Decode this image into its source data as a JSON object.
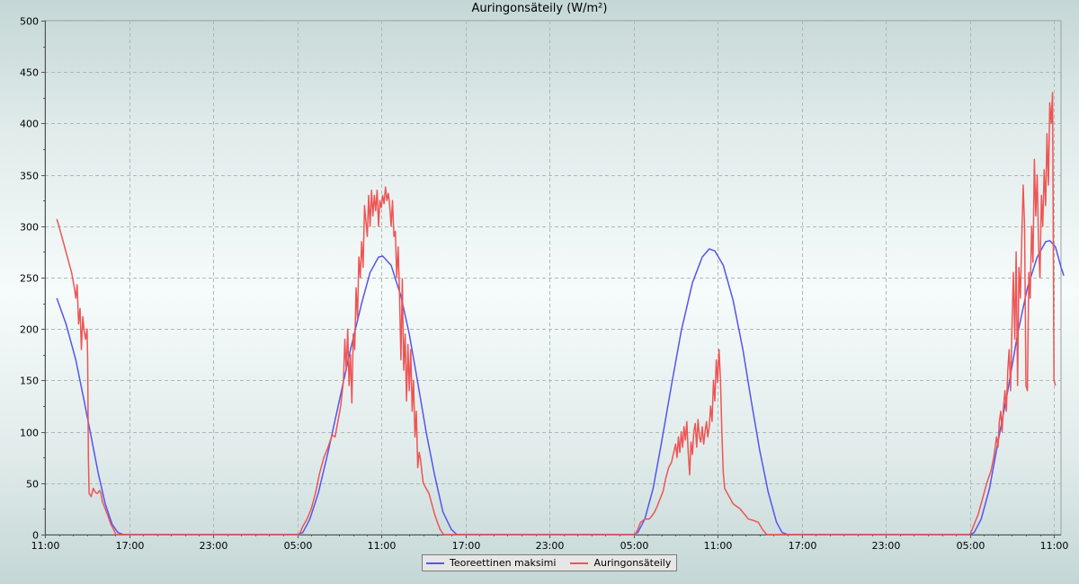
{
  "chart_data": {
    "type": "line",
    "title": "Auringonsäteily (W/m²)",
    "xlabel": "",
    "ylabel": "",
    "ylim": [
      0,
      500
    ],
    "yticks": [
      0,
      50,
      100,
      150,
      200,
      250,
      300,
      350,
      400,
      450,
      500
    ],
    "x_unit": "hours from the 11:00 tick at left edge",
    "xlim": [
      0,
      72.5
    ],
    "xticks": [
      {
        "x": 0,
        "label": "11:00"
      },
      {
        "x": 6,
        "label": "17:00"
      },
      {
        "x": 12,
        "label": "23:00"
      },
      {
        "x": 18,
        "label": "05:00"
      },
      {
        "x": 24,
        "label": "11:00"
      },
      {
        "x": 30,
        "label": "17:00"
      },
      {
        "x": 36,
        "label": "23:00"
      },
      {
        "x": 42,
        "label": "05:00"
      },
      {
        "x": 48,
        "label": "11:00"
      },
      {
        "x": 54,
        "label": "17:00"
      },
      {
        "x": 60,
        "label": "23:00"
      },
      {
        "x": 66,
        "label": "05:00"
      },
      {
        "x": 72,
        "label": "11:00"
      }
    ],
    "grid": true,
    "legend_position": "bottom-center",
    "series": [
      {
        "name": "Teoreettinen maksimi",
        "color": "#5555ee",
        "points": [
          [
            0.85,
            230
          ],
          [
            1.5,
            205
          ],
          [
            2.2,
            170
          ],
          [
            2.8,
            130
          ],
          [
            3.3,
            95
          ],
          [
            3.8,
            60
          ],
          [
            4.3,
            30
          ],
          [
            4.8,
            10
          ],
          [
            5.2,
            2
          ],
          [
            5.6,
            0
          ],
          [
            18.0,
            0
          ],
          [
            18.4,
            2
          ],
          [
            18.9,
            15
          ],
          [
            19.5,
            40
          ],
          [
            20.2,
            80
          ],
          [
            21.0,
            130
          ],
          [
            21.8,
            180
          ],
          [
            22.6,
            225
          ],
          [
            23.2,
            255
          ],
          [
            23.8,
            270
          ],
          [
            24.1,
            271
          ],
          [
            24.7,
            262
          ],
          [
            25.4,
            232
          ],
          [
            26.0,
            195
          ],
          [
            26.6,
            148
          ],
          [
            27.2,
            100
          ],
          [
            27.8,
            58
          ],
          [
            28.4,
            22
          ],
          [
            29.0,
            5
          ],
          [
            29.4,
            0
          ],
          [
            42.0,
            0
          ],
          [
            42.3,
            2
          ],
          [
            42.8,
            15
          ],
          [
            43.4,
            45
          ],
          [
            44.0,
            90
          ],
          [
            44.7,
            145
          ],
          [
            45.4,
            198
          ],
          [
            46.2,
            245
          ],
          [
            46.9,
            270
          ],
          [
            47.4,
            278
          ],
          [
            47.8,
            276
          ],
          [
            48.4,
            262
          ],
          [
            49.1,
            228
          ],
          [
            49.8,
            180
          ],
          [
            50.4,
            130
          ],
          [
            51.0,
            82
          ],
          [
            51.6,
            42
          ],
          [
            52.2,
            12
          ],
          [
            52.6,
            2
          ],
          [
            53.0,
            0
          ],
          [
            66.0,
            0
          ],
          [
            66.3,
            2
          ],
          [
            66.8,
            15
          ],
          [
            67.4,
            45
          ],
          [
            68.0,
            90
          ],
          [
            68.7,
            140
          ],
          [
            69.4,
            195
          ],
          [
            70.1,
            240
          ],
          [
            70.8,
            270
          ],
          [
            71.4,
            285
          ],
          [
            71.7,
            286
          ],
          [
            72.1,
            280
          ],
          [
            72.5,
            260
          ],
          [
            72.7,
            252
          ]
        ]
      },
      {
        "name": "Auringonsäteily",
        "color": "#ee5555",
        "points": [
          [
            0.85,
            307
          ],
          [
            1.0,
            300
          ],
          [
            1.3,
            285
          ],
          [
            1.6,
            270
          ],
          [
            1.9,
            255
          ],
          [
            2.1,
            240
          ],
          [
            2.2,
            230
          ],
          [
            2.3,
            243
          ],
          [
            2.4,
            205
          ],
          [
            2.5,
            220
          ],
          [
            2.6,
            180
          ],
          [
            2.7,
            212
          ],
          [
            2.8,
            198
          ],
          [
            2.9,
            190
          ],
          [
            3.0,
            200
          ],
          [
            3.05,
            170
          ],
          [
            3.1,
            75
          ],
          [
            3.15,
            40
          ],
          [
            3.3,
            37
          ],
          [
            3.45,
            45
          ],
          [
            3.6,
            41
          ],
          [
            3.75,
            40
          ],
          [
            3.9,
            43
          ],
          [
            4.0,
            40
          ],
          [
            4.1,
            32
          ],
          [
            4.3,
            25
          ],
          [
            4.5,
            18
          ],
          [
            4.7,
            10
          ],
          [
            4.9,
            5
          ],
          [
            5.05,
            0
          ],
          [
            18.15,
            0
          ],
          [
            18.4,
            8
          ],
          [
            18.7,
            15
          ],
          [
            19.0,
            25
          ],
          [
            19.3,
            40
          ],
          [
            19.6,
            60
          ],
          [
            19.9,
            75
          ],
          [
            20.2,
            85
          ],
          [
            20.5,
            97
          ],
          [
            20.7,
            95
          ],
          [
            20.9,
            110
          ],
          [
            21.1,
            125
          ],
          [
            21.3,
            150
          ],
          [
            21.4,
            190
          ],
          [
            21.5,
            160
          ],
          [
            21.6,
            200
          ],
          [
            21.7,
            145
          ],
          [
            21.8,
            175
          ],
          [
            21.9,
            128
          ],
          [
            22.0,
            195
          ],
          [
            22.1,
            180
          ],
          [
            22.2,
            240
          ],
          [
            22.3,
            210
          ],
          [
            22.4,
            270
          ],
          [
            22.5,
            250
          ],
          [
            22.6,
            285
          ],
          [
            22.7,
            260
          ],
          [
            22.8,
            320
          ],
          [
            22.9,
            305
          ],
          [
            23.0,
            290
          ],
          [
            23.1,
            330
          ],
          [
            23.2,
            300
          ],
          [
            23.3,
            335
          ],
          [
            23.4,
            310
          ],
          [
            23.5,
            330
          ],
          [
            23.6,
            315
          ],
          [
            23.7,
            335
          ],
          [
            23.8,
            300
          ],
          [
            23.9,
            325
          ],
          [
            24.0,
            318
          ],
          [
            24.1,
            330
          ],
          [
            24.2,
            322
          ],
          [
            24.3,
            338
          ],
          [
            24.4,
            325
          ],
          [
            24.5,
            332
          ],
          [
            24.6,
            320
          ],
          [
            24.7,
            300
          ],
          [
            24.8,
            325
          ],
          [
            24.9,
            290
          ],
          [
            25.0,
            295
          ],
          [
            25.1,
            250
          ],
          [
            25.2,
            280
          ],
          [
            25.3,
            235
          ],
          [
            25.4,
            170
          ],
          [
            25.5,
            249
          ],
          [
            25.6,
            160
          ],
          [
            25.7,
            195
          ],
          [
            25.8,
            130
          ],
          [
            25.9,
            185
          ],
          [
            26.0,
            140
          ],
          [
            26.1,
            180
          ],
          [
            26.2,
            120
          ],
          [
            26.3,
            150
          ],
          [
            26.4,
            95
          ],
          [
            26.5,
            120
          ],
          [
            26.6,
            65
          ],
          [
            26.7,
            80
          ],
          [
            26.8,
            73
          ],
          [
            26.9,
            60
          ],
          [
            27.0,
            50
          ],
          [
            27.2,
            45
          ],
          [
            27.4,
            40
          ],
          [
            27.6,
            30
          ],
          [
            27.8,
            20
          ],
          [
            28.0,
            12
          ],
          [
            28.2,
            5
          ],
          [
            28.45,
            0
          ],
          [
            42.1,
            0
          ],
          [
            42.3,
            5
          ],
          [
            42.5,
            12
          ],
          [
            42.8,
            15
          ],
          [
            43.1,
            15
          ],
          [
            43.3,
            18
          ],
          [
            43.5,
            22
          ],
          [
            43.7,
            28
          ],
          [
            43.9,
            35
          ],
          [
            44.1,
            42
          ],
          [
            44.3,
            55
          ],
          [
            44.5,
            65
          ],
          [
            44.7,
            70
          ],
          [
            44.9,
            82
          ],
          [
            45.0,
            88
          ],
          [
            45.1,
            75
          ],
          [
            45.2,
            95
          ],
          [
            45.3,
            80
          ],
          [
            45.4,
            100
          ],
          [
            45.5,
            85
          ],
          [
            45.6,
            105
          ],
          [
            45.7,
            92
          ],
          [
            45.8,
            110
          ],
          [
            45.9,
            80
          ],
          [
            46.0,
            58
          ],
          [
            46.1,
            90
          ],
          [
            46.2,
            78
          ],
          [
            46.3,
            100
          ],
          [
            46.4,
            108
          ],
          [
            46.5,
            85
          ],
          [
            46.6,
            112
          ],
          [
            46.7,
            95
          ],
          [
            46.8,
            90
          ],
          [
            46.9,
            105
          ],
          [
            47.0,
            88
          ],
          [
            47.1,
            100
          ],
          [
            47.2,
            110
          ],
          [
            47.3,
            95
          ],
          [
            47.4,
            105
          ],
          [
            47.5,
            125
          ],
          [
            47.6,
            110
          ],
          [
            47.7,
            150
          ],
          [
            47.8,
            130
          ],
          [
            47.9,
            170
          ],
          [
            48.0,
            148
          ],
          [
            48.1,
            180
          ],
          [
            48.2,
            150
          ],
          [
            48.3,
            100
          ],
          [
            48.4,
            60
          ],
          [
            48.5,
            45
          ],
          [
            48.7,
            40
          ],
          [
            48.9,
            35
          ],
          [
            49.1,
            30
          ],
          [
            49.3,
            28
          ],
          [
            49.6,
            25
          ],
          [
            49.9,
            20
          ],
          [
            50.2,
            15
          ],
          [
            50.5,
            14
          ],
          [
            50.9,
            12
          ],
          [
            51.2,
            5
          ],
          [
            51.5,
            0
          ],
          [
            66.0,
            0
          ],
          [
            66.3,
            10
          ],
          [
            66.6,
            20
          ],
          [
            66.9,
            35
          ],
          [
            67.2,
            50
          ],
          [
            67.5,
            62
          ],
          [
            67.7,
            75
          ],
          [
            67.9,
            95
          ],
          [
            68.0,
            85
          ],
          [
            68.1,
            110
          ],
          [
            68.2,
            120
          ],
          [
            68.3,
            100
          ],
          [
            68.4,
            125
          ],
          [
            68.5,
            140
          ],
          [
            68.6,
            120
          ],
          [
            68.7,
            160
          ],
          [
            68.8,
            180
          ],
          [
            68.9,
            140
          ],
          [
            69.0,
            200
          ],
          [
            69.1,
            255
          ],
          [
            69.2,
            190
          ],
          [
            69.3,
            275
          ],
          [
            69.4,
            145
          ],
          [
            69.5,
            260
          ],
          [
            69.6,
            230
          ],
          [
            69.7,
            290
          ],
          [
            69.8,
            340
          ],
          [
            69.9,
            300
          ],
          [
            70.0,
            145
          ],
          [
            70.1,
            140
          ],
          [
            70.2,
            255
          ],
          [
            70.3,
            230
          ],
          [
            70.4,
            300
          ],
          [
            70.5,
            265
          ],
          [
            70.6,
            365
          ],
          [
            70.7,
            310
          ],
          [
            70.8,
            350
          ],
          [
            70.9,
            280
          ],
          [
            71.0,
            250
          ],
          [
            71.1,
            330
          ],
          [
            71.2,
            300
          ],
          [
            71.3,
            355
          ],
          [
            71.4,
            320
          ],
          [
            71.5,
            390
          ],
          [
            71.6,
            340
          ],
          [
            71.7,
            420
          ],
          [
            71.8,
            400
          ],
          [
            71.9,
            430
          ],
          [
            72.0,
            150
          ],
          [
            72.1,
            145
          ]
        ]
      }
    ]
  }
}
